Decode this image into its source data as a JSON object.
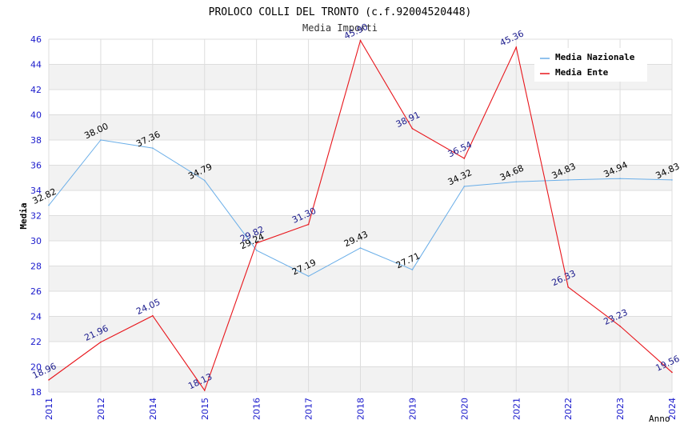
{
  "chart_data": {
    "type": "line",
    "title": "PROLOCO COLLI DEL TRONTO (c.f.92004520448)",
    "subtitle": "Media Importi",
    "xlabel": "Anno",
    "ylabel": "Media",
    "ylim": [
      18,
      46
    ],
    "yticks": [
      18,
      20,
      22,
      24,
      26,
      28,
      30,
      32,
      34,
      36,
      38,
      40,
      42,
      44,
      46
    ],
    "categories": [
      "2011",
      "2012",
      "2014",
      "2015",
      "2016",
      "2017",
      "2018",
      "2019",
      "2020",
      "2021",
      "2022",
      "2023",
      "2024"
    ],
    "grid": true,
    "legend_position": "top-right",
    "series": [
      {
        "name": "Media Nazionale",
        "color": "#6aaee8",
        "label_color": "#000000",
        "values": [
          32.82,
          38.0,
          37.36,
          34.79,
          29.24,
          27.19,
          29.43,
          27.71,
          34.32,
          34.68,
          34.83,
          34.94,
          34.83
        ],
        "labels": [
          "32.82",
          "38.00",
          "37.36",
          "34.79",
          "29.24",
          "27.19",
          "29.43",
          "27.71",
          "34.32",
          "34.68",
          "34.83",
          "34.94",
          "34.83"
        ]
      },
      {
        "name": "Media Ente",
        "color": "#e8151b",
        "label_color": "#1a1a8c",
        "values": [
          18.96,
          21.96,
          24.05,
          18.13,
          29.82,
          31.3,
          45.9,
          38.91,
          36.54,
          45.36,
          26.33,
          23.23,
          19.56
        ],
        "labels": [
          "18.96",
          "21.96",
          "24.05",
          "18.13",
          "29.82",
          "31.30",
          "45.90",
          "38.91",
          "36.54",
          "45.36",
          "26.33",
          "23.23",
          "19.56"
        ]
      }
    ]
  }
}
